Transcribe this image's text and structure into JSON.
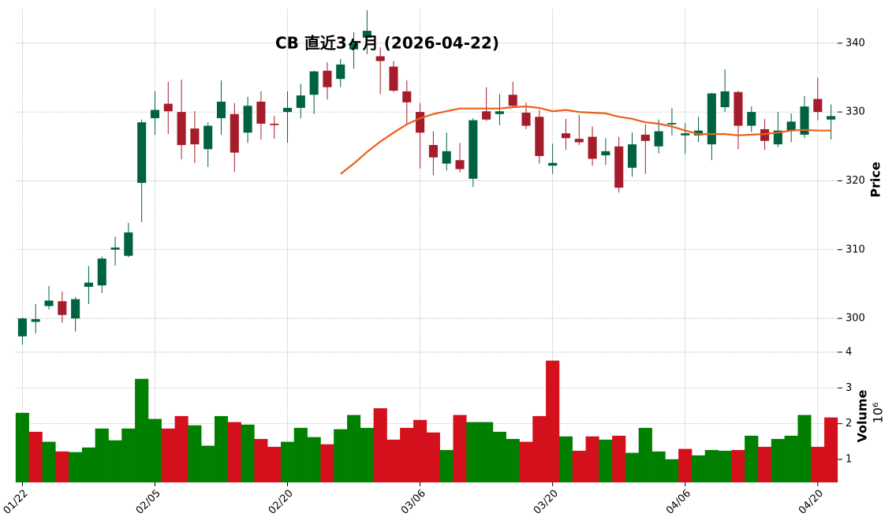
{
  "chart_data": {
    "type": "candlestick",
    "title": "CB  直近3ヶ月 (2026-04-22)",
    "categories": [
      "01/22",
      null,
      null,
      null,
      null,
      null,
      null,
      null,
      null,
      null,
      "02/05",
      null,
      null,
      null,
      null,
      null,
      null,
      null,
      null,
      null,
      "02/20",
      null,
      null,
      null,
      null,
      null,
      null,
      null,
      null,
      null,
      "03/06",
      null,
      null,
      null,
      null,
      null,
      null,
      null,
      null,
      null,
      "03/20",
      null,
      null,
      null,
      null,
      null,
      null,
      null,
      null,
      null,
      "04/06",
      null,
      null,
      null,
      null,
      null,
      null,
      null,
      null,
      null,
      "04/20",
      null
    ],
    "open": [
      297.4,
      299.5,
      301.8,
      302.5,
      300.0,
      304.6,
      304.8,
      310.0,
      309.1,
      319.7,
      329.1,
      331.2,
      330.0,
      327.6,
      324.6,
      329.1,
      329.7,
      327.0,
      331.5,
      328.3,
      330.0,
      330.6,
      332.5,
      336.0,
      334.8,
      339.1,
      340.8,
      338.1,
      336.6,
      333.0,
      330.0,
      325.2,
      322.5,
      323.0,
      320.3,
      330.1,
      329.7,
      332.5,
      329.9,
      329.3,
      322.2,
      326.9,
      326.1,
      326.4,
      323.7,
      325.0,
      321.9,
      326.7,
      325.0,
      328.2,
      326.6,
      326.6,
      325.3,
      330.7,
      332.9,
      328.0,
      327.5,
      325.3,
      327.3,
      326.7,
      331.9,
      328.9
    ],
    "high": [
      300.1,
      302.1,
      304.7,
      303.9,
      303.1,
      307.6,
      309.0,
      311.9,
      313.9,
      328.9,
      333.0,
      334.4,
      334.7,
      330.1,
      328.5,
      334.6,
      331.3,
      332.2,
      333.0,
      329.4,
      333.0,
      334.1,
      336.0,
      337.2,
      337.7,
      341.6,
      344.8,
      339.4,
      337.4,
      334.6,
      331.3,
      327.2,
      327.0,
      325.5,
      329.1,
      333.6,
      332.6,
      334.4,
      331.4,
      330.3,
      325.4,
      329.0,
      329.6,
      327.9,
      326.2,
      326.4,
      327.0,
      328.2,
      328.9,
      330.6,
      328.4,
      329.3,
      332.8,
      336.2,
      333.1,
      330.8,
      329.0,
      330.0,
      329.8,
      332.3,
      335.0,
      331.1
    ],
    "low": [
      296.2,
      297.8,
      301.3,
      299.4,
      298.1,
      302.1,
      303.7,
      307.7,
      308.9,
      314.0,
      326.7,
      326.8,
      323.1,
      322.6,
      322.0,
      326.7,
      321.3,
      325.5,
      326.0,
      326.1,
      325.5,
      329.1,
      329.7,
      331.8,
      333.6,
      336.3,
      338.4,
      332.6,
      332.9,
      328.3,
      321.8,
      320.8,
      321.5,
      321.2,
      319.1,
      328.7,
      328.1,
      330.6,
      327.5,
      322.5,
      321.0,
      324.5,
      325.2,
      322.2,
      322.3,
      318.3,
      320.6,
      321.0,
      324.0,
      326.6,
      323.9,
      325.6,
      323.0,
      330.0,
      324.6,
      327.1,
      324.5,
      324.9,
      325.6,
      326.2,
      328.8,
      326.0
    ],
    "close": [
      300.0,
      299.9,
      302.6,
      300.5,
      302.8,
      305.2,
      308.7,
      310.3,
      312.5,
      328.5,
      330.3,
      330.1,
      325.2,
      325.3,
      328.0,
      331.5,
      324.1,
      330.9,
      328.3,
      328.1,
      330.6,
      332.4,
      335.9,
      333.6,
      336.9,
      340.0,
      341.8,
      337.4,
      333.1,
      331.4,
      327.0,
      323.4,
      324.3,
      321.7,
      328.8,
      328.9,
      330.1,
      330.9,
      328.0,
      323.6,
      322.6,
      326.2,
      325.6,
      323.2,
      324.3,
      319.0,
      325.3,
      325.8,
      327.2,
      328.4,
      326.9,
      327.3,
      332.7,
      333.0,
      328.0,
      330.0,
      325.8,
      327.3,
      328.6,
      330.8,
      330.0,
      329.4
    ],
    "up_color": "#006340",
    "down_color": "#a51d2a",
    "ylim": [
      295.2,
      344.9
    ],
    "yticks": [
      300,
      310,
      320,
      330,
      340
    ],
    "ylabel": "Price",
    "grid": true,
    "moving_average": {
      "color": "#e8601c",
      "values": [
        null,
        null,
        null,
        null,
        null,
        null,
        null,
        null,
        null,
        null,
        null,
        null,
        null,
        null,
        null,
        null,
        null,
        null,
        null,
        null,
        null,
        null,
        null,
        null,
        321.0,
        322.5,
        324.2,
        325.7,
        327.0,
        328.2,
        329.1,
        329.7,
        330.1,
        330.5,
        330.5,
        330.5,
        330.5,
        330.7,
        330.8,
        330.6,
        330.1,
        330.3,
        330.0,
        329.9,
        329.8,
        329.3,
        329.0,
        328.5,
        328.3,
        327.9,
        327.3,
        326.8,
        326.8,
        326.8,
        326.6,
        326.7,
        326.8,
        327.0,
        327.3,
        327.4,
        327.3,
        327.3
      ]
    },
    "volume": {
      "values": [
        2.3,
        1.77,
        1.49,
        1.22,
        1.2,
        1.33,
        1.86,
        1.53,
        1.86,
        3.25,
        2.13,
        1.86,
        2.21,
        1.95,
        1.38,
        2.21,
        2.04,
        1.97,
        1.57,
        1.35,
        1.49,
        1.88,
        1.62,
        1.42,
        1.84,
        2.24,
        1.88,
        2.43,
        1.55,
        1.88,
        2.1,
        1.75,
        1.26,
        2.24,
        2.04,
        2.04,
        1.77,
        1.57,
        1.49,
        2.21,
        3.76,
        1.64,
        1.24,
        1.64,
        1.55,
        1.66,
        1.18,
        1.88,
        1.22,
        1.0,
        1.29,
        1.11,
        1.26,
        1.24,
        1.26,
        1.66,
        1.35,
        1.57,
        1.66,
        2.24,
        1.35,
        2.17
      ],
      "up_color": "#007f00",
      "down_color": "#d3101c",
      "ylim": [
        0.36,
        4.02
      ],
      "yticks": [
        1,
        2,
        3,
        4
      ],
      "ylabel": "Volume",
      "scale_label": "10⁶"
    }
  }
}
